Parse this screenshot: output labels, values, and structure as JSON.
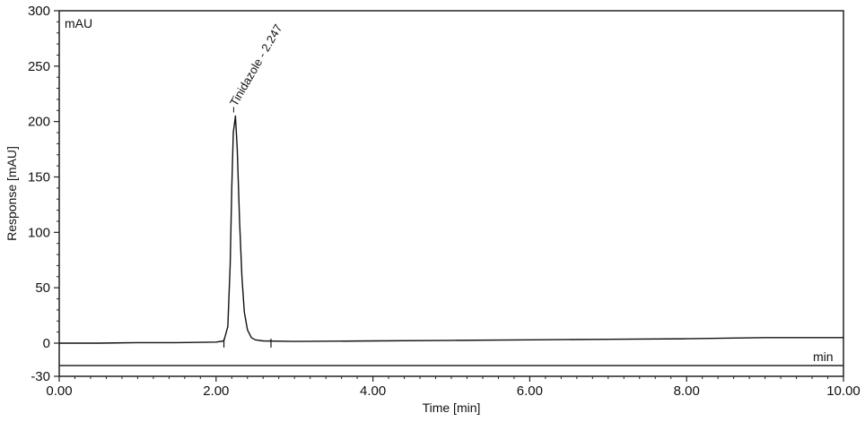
{
  "chart_data": {
    "type": "line",
    "title": "",
    "xlabel": "Time [min]",
    "ylabel": "Response [mAU]",
    "y_unit_label": "mAU",
    "x_unit_label": "min",
    "xlim": [
      0,
      10
    ],
    "ylim": [
      -30,
      300
    ],
    "x_ticks": [
      0,
      2,
      4,
      6,
      8,
      10
    ],
    "x_tick_labels": [
      "0.00",
      "2.00",
      "4.00",
      "6.00",
      "8.00",
      "10.00"
    ],
    "y_ticks": [
      300,
      250,
      200,
      150,
      100,
      50,
      0,
      -30
    ],
    "y_tick_labels": [
      "300",
      "250",
      "200",
      "150",
      "100",
      "50",
      "0",
      "-30"
    ],
    "grid": false,
    "series": [
      {
        "x": [
          0,
          0.5,
          1.0,
          1.5,
          2.0,
          2.1,
          2.15,
          2.18,
          2.2,
          2.22,
          2.247,
          2.27,
          2.3,
          2.33,
          2.36,
          2.4,
          2.45,
          2.5,
          2.6,
          3.0,
          4.0,
          5.0,
          6.0,
          7.0,
          8.0,
          9.0,
          10.0
        ],
        "y": [
          0,
          0,
          0.5,
          0.5,
          1,
          2,
          15,
          70,
          140,
          190,
          205,
          175,
          110,
          60,
          28,
          12,
          5,
          3,
          2,
          1.5,
          2,
          2.5,
          3,
          3.5,
          4,
          5,
          5
        ]
      }
    ],
    "annotations": [
      {
        "text": "Tinidazole - 2.247",
        "x": 2.247,
        "y": 205
      }
    ],
    "peak_markers": [
      2.1,
      2.7
    ]
  }
}
